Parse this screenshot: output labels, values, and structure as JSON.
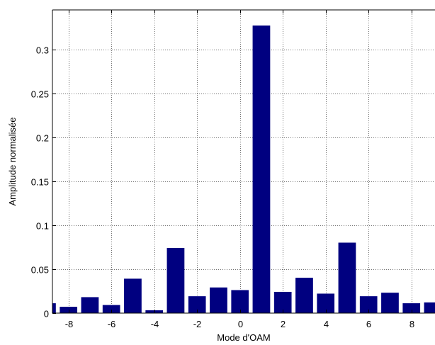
{
  "chart_data": {
    "type": "bar",
    "title": "",
    "xlabel": "Mode d'OAM",
    "ylabel": "Amplitude normalisée",
    "x": [
      -9,
      -8,
      -7,
      -6,
      -5,
      -4,
      -3,
      -2,
      -1,
      0,
      1,
      2,
      3,
      4,
      5,
      6,
      7,
      8,
      9
    ],
    "values": [
      0.011,
      0.007,
      0.018,
      0.009,
      0.039,
      0.003,
      0.074,
      0.019,
      0.029,
      0.026,
      0.327,
      0.024,
      0.04,
      0.022,
      0.08,
      0.019,
      0.023,
      0.011,
      0.012
    ],
    "xlim": [
      -8.75,
      9.1
    ],
    "ylim": [
      0,
      0.345
    ],
    "xticks": [
      -8,
      -6,
      -4,
      -2,
      0,
      2,
      4,
      6,
      8
    ],
    "xtick_labels": [
      "-8",
      "-6",
      "-4",
      "-2",
      "0",
      "2",
      "4",
      "6",
      "8"
    ],
    "yticks": [
      0,
      0.05,
      0.1,
      0.15,
      0.2,
      0.25,
      0.3
    ],
    "ytick_labels": [
      "0",
      "0.05",
      "0.1",
      "0.15",
      "0.2",
      "0.25",
      "0.3"
    ],
    "grid": true,
    "bar_color": "#000080",
    "grid_color": "#000000",
    "legend": "none"
  }
}
